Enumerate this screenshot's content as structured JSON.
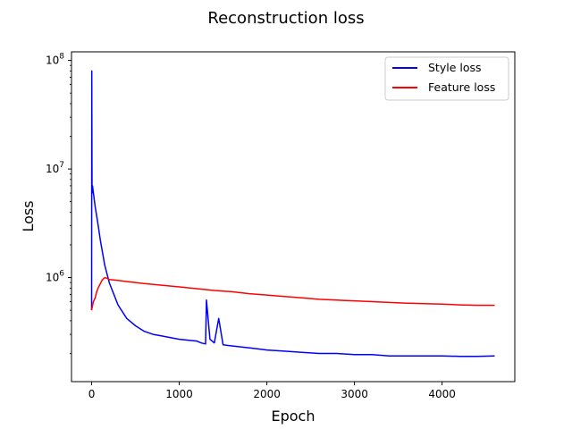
{
  "chart_data": {
    "type": "line",
    "title": "Reconstruction loss",
    "xlabel": "Epoch",
    "ylabel": "Loss",
    "y_scale": "log",
    "xlim": [
      -230,
      4830
    ],
    "ylim": [
      110000,
      120000000
    ],
    "x_ticks": [
      0,
      1000,
      2000,
      3000,
      4000
    ],
    "x_tick_labels": [
      "0",
      "1000",
      "2000",
      "3000",
      "4000"
    ],
    "y_ticks": [
      1000000,
      10000000,
      100000000
    ],
    "y_tick_labels": [
      {
        "base": "10",
        "exp": "6"
      },
      {
        "base": "10",
        "exp": "7"
      },
      {
        "base": "10",
        "exp": "8"
      }
    ],
    "grid": false,
    "legend_position": "top-right",
    "series": [
      {
        "name": "Style loss",
        "color": "#0000ff",
        "x": [
          0,
          2,
          5,
          10,
          20,
          40,
          70,
          100,
          150,
          200,
          300,
          400,
          500,
          600,
          700,
          800,
          900,
          1000,
          1100,
          1200,
          1250,
          1300,
          1310,
          1350,
          1400,
          1450,
          1500,
          1600,
          1700,
          1800,
          1900,
          2000,
          2200,
          2400,
          2600,
          2800,
          3000,
          3200,
          3400,
          3600,
          3800,
          4000,
          4200,
          4400,
          4600
        ],
        "y": [
          500000,
          80000000,
          6000000,
          7000000,
          6000000,
          4500000,
          3200000,
          2200000,
          1300000,
          900000,
          560000,
          420000,
          360000,
          320000,
          300000,
          290000,
          280000,
          270000,
          265000,
          260000,
          250000,
          245000,
          620000,
          270000,
          250000,
          420000,
          240000,
          235000,
          230000,
          225000,
          220000,
          215000,
          210000,
          205000,
          200000,
          200000,
          195000,
          195000,
          190000,
          190000,
          190000,
          190000,
          188000,
          188000,
          190000
        ]
      },
      {
        "name": "Feature loss",
        "color": "#ff0000",
        "x": [
          0,
          20,
          40,
          60,
          80,
          100,
          120,
          150,
          180,
          200,
          250,
          300,
          400,
          500,
          600,
          800,
          1000,
          1200,
          1400,
          1600,
          1800,
          2000,
          2200,
          2400,
          2600,
          2800,
          3000,
          3200,
          3400,
          3600,
          3800,
          4000,
          4200,
          4400,
          4600
        ],
        "y": [
          500000,
          600000,
          650000,
          750000,
          820000,
          880000,
          950000,
          1000000,
          980000,
          960000,
          950000,
          940000,
          920000,
          900000,
          880000,
          850000,
          820000,
          790000,
          760000,
          740000,
          710000,
          690000,
          670000,
          650000,
          630000,
          620000,
          610000,
          600000,
          590000,
          580000,
          575000,
          570000,
          560000,
          555000,
          555000
        ]
      }
    ]
  }
}
